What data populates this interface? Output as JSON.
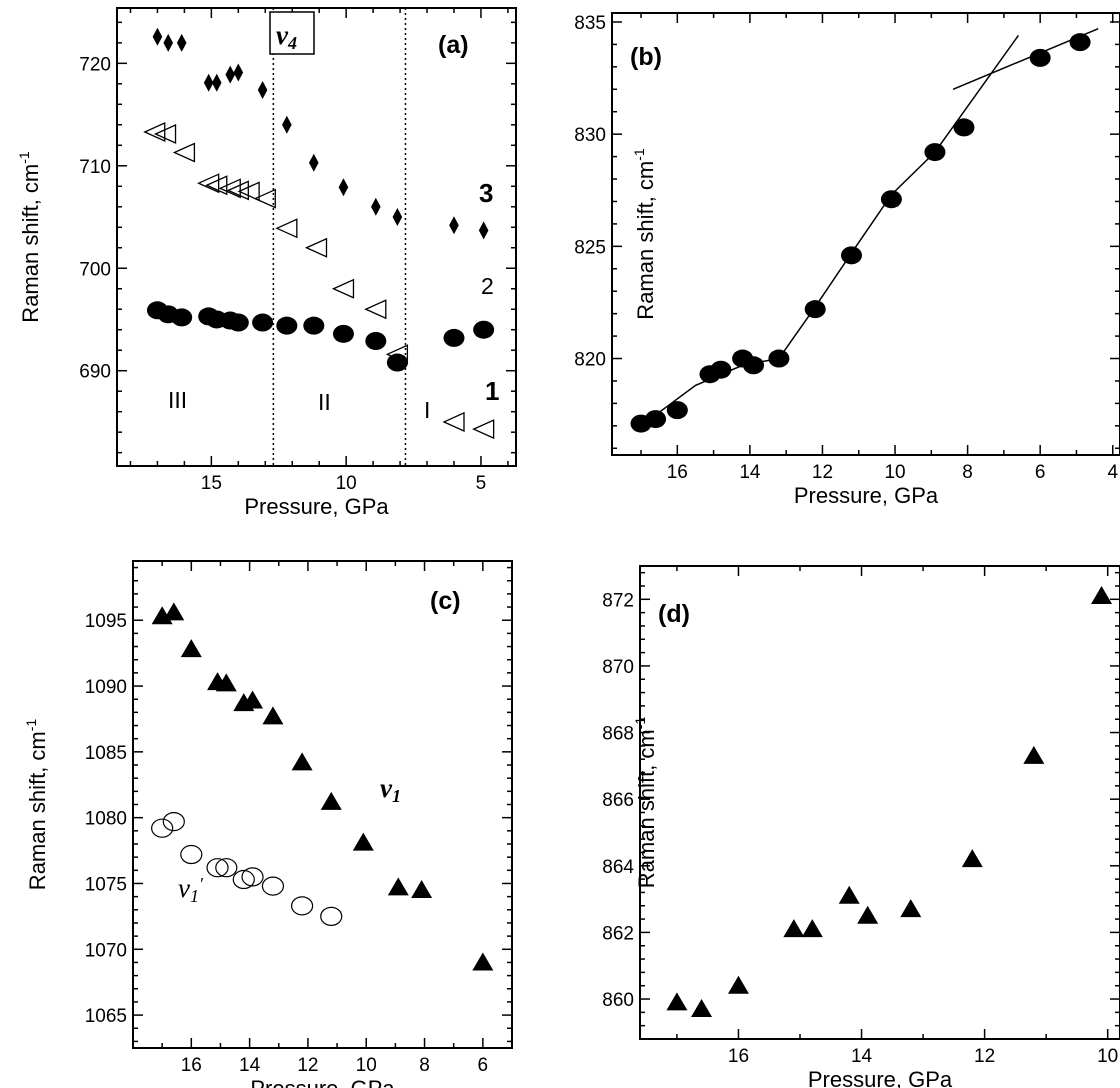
{
  "chart_data": [
    {
      "id": "a",
      "type": "scatter",
      "panel_label": "(a)",
      "xlabel": "Pressure, GPa",
      "ylabel": "Raman shift, cm",
      "ylabel_sup": "-1",
      "xlim": [
        18.5,
        3.7
      ],
      "ylim": [
        680.7,
        725.4
      ],
      "xticks": [
        15,
        10,
        5
      ],
      "yticks": [
        690,
        700,
        710,
        720
      ],
      "series": [
        {
          "id": "3",
          "marker": "diamond",
          "x": [
            17.0,
            16.6,
            16.1,
            15.1,
            14.8,
            14.3,
            14.0,
            13.1,
            12.2,
            11.2,
            10.1,
            8.9,
            8.1,
            6.0,
            4.9
          ],
          "y": [
            722.6,
            722.0,
            722.0,
            718.1,
            718.1,
            718.9,
            719.1,
            717.4,
            714.0,
            710.3,
            707.9,
            706.0,
            705.0,
            704.2,
            703.7
          ]
        },
        {
          "id": "2",
          "marker": "triangle-left-open",
          "x": [
            17.1,
            16.7,
            16.0,
            15.1,
            14.8,
            14.3,
            14.0,
            13.6,
            13.0,
            12.2,
            11.1,
            10.1,
            8.9,
            8.1,
            6.0,
            4.9
          ],
          "y": [
            713.3,
            713.1,
            711.3,
            708.3,
            708.1,
            707.8,
            707.6,
            707.5,
            706.8,
            703.9,
            702.0,
            698.0,
            696.0,
            691.6,
            685.0,
            684.3
          ]
        },
        {
          "id": "1",
          "marker": "circle",
          "x": [
            17.0,
            16.6,
            16.1,
            15.1,
            14.8,
            14.3,
            14.0,
            13.1,
            12.2,
            11.2,
            10.1,
            8.9,
            8.1,
            6.0,
            4.9
          ],
          "y": [
            695.9,
            695.5,
            695.2,
            695.3,
            695.0,
            694.9,
            694.7,
            694.7,
            694.4,
            694.4,
            693.6,
            692.9,
            690.8,
            693.2,
            694.0
          ]
        }
      ],
      "vlines": [
        12.7,
        7.8
      ],
      "annotations": {
        "mode_symbol": "ν",
        "mode_sub": "4",
        "phase_III": "III",
        "phase_II": "II",
        "phase_I": "I",
        "series_3": "3",
        "series_2": "2",
        "series_1": "1"
      }
    },
    {
      "id": "b",
      "type": "scatter",
      "panel_label": "(b)",
      "xlabel": "Pressure, GPa",
      "ylabel": "Raman shift, cm",
      "ylabel_sup": "-1",
      "xlim": [
        17.8,
        3.8
      ],
      "ylim": [
        815.7,
        835.4
      ],
      "xticks": [
        16,
        14,
        12,
        10,
        8,
        6,
        4
      ],
      "yticks": [
        820,
        825,
        830,
        835
      ],
      "series": [
        {
          "id": "b1",
          "marker": "circle",
          "x": [
            17.0,
            16.6,
            16.0,
            15.1,
            14.8,
            14.2,
            13.9,
            13.2,
            12.2,
            11.2,
            10.1,
            8.9,
            8.1,
            6.0,
            4.9
          ],
          "y": [
            817.1,
            817.3,
            817.7,
            819.3,
            819.5,
            820.0,
            819.7,
            820.0,
            822.2,
            824.6,
            827.1,
            829.2,
            830.3,
            833.4,
            834.1
          ]
        }
      ],
      "fit_lines": [
        {
          "x": [
            17.0,
            15.5,
            14.2,
            13.2,
            12.2,
            11.2,
            10.1,
            8.9,
            6.6
          ],
          "y": [
            817.0,
            818.8,
            819.7,
            820.0,
            822.3,
            824.7,
            827.3,
            829.2,
            834.4
          ]
        },
        {
          "x": [
            8.4,
            4.4
          ],
          "y": [
            832.0,
            834.7
          ]
        }
      ]
    },
    {
      "id": "c",
      "type": "scatter",
      "panel_label": "(c)",
      "xlabel": "Pressure, GPa",
      "ylabel": "Raman shift, cm",
      "ylabel_sup": "-1",
      "xlim": [
        18.0,
        5.0
      ],
      "ylim": [
        1062.5,
        1099.5
      ],
      "xticks": [
        16,
        14,
        12,
        10,
        8,
        6
      ],
      "yticks": [
        1065,
        1070,
        1075,
        1080,
        1085,
        1090,
        1095
      ],
      "series": [
        {
          "id": "v1",
          "marker": "triangle-up",
          "x": [
            17.0,
            16.6,
            16.0,
            15.1,
            14.8,
            14.2,
            13.9,
            13.2,
            12.2,
            11.2,
            10.1,
            8.9,
            8.1,
            6.0
          ],
          "y": [
            1095.3,
            1095.6,
            1092.8,
            1090.3,
            1090.2,
            1088.7,
            1088.9,
            1087.7,
            1084.2,
            1081.2,
            1078.1,
            1074.7,
            1074.5,
            1069.0
          ]
        },
        {
          "id": "v1prime",
          "marker": "circle-open",
          "x": [
            17.0,
            16.6,
            16.0,
            15.1,
            14.8,
            14.2,
            13.9,
            13.2,
            12.2,
            11.2
          ],
          "y": [
            1079.2,
            1079.7,
            1077.2,
            1076.2,
            1076.2,
            1075.3,
            1075.5,
            1074.8,
            1073.3,
            1072.5
          ]
        }
      ],
      "annotations": {
        "v1_symbol": "ν",
        "v1_sub": "1",
        "v1p_symbol": "ν",
        "v1p_sub": "1",
        "v1p_prime": "′"
      }
    },
    {
      "id": "d",
      "type": "scatter",
      "panel_label": "(d)",
      "xlabel": "Pressure, GPa",
      "ylabel": "Raman shift, cm",
      "ylabel_sup": "-1",
      "xlim": [
        17.6,
        9.8
      ],
      "ylim": [
        858.8,
        873.0
      ],
      "xticks": [
        16,
        14,
        12,
        10
      ],
      "yticks": [
        860,
        862,
        864,
        866,
        868,
        870,
        872
      ],
      "series": [
        {
          "id": "d1",
          "marker": "triangle-up",
          "x": [
            17.0,
            16.6,
            16.0,
            15.1,
            14.8,
            14.2,
            13.9,
            13.2,
            12.2,
            11.2,
            10.1
          ],
          "y": [
            859.9,
            859.7,
            860.4,
            862.1,
            862.1,
            863.1,
            862.5,
            862.7,
            864.2,
            867.3,
            872.1
          ]
        }
      ]
    }
  ]
}
